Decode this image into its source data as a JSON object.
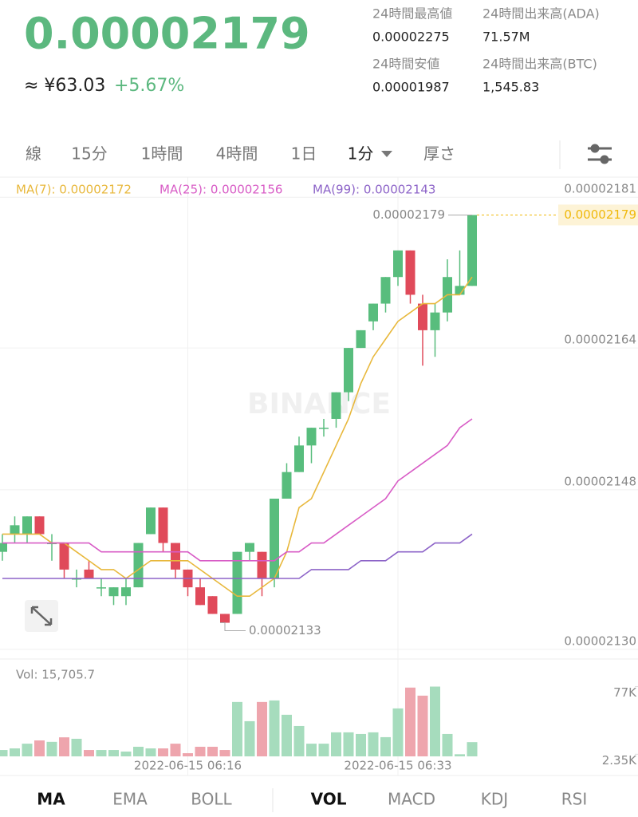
{
  "header": {
    "price": "0.00002179",
    "fiat": "≈ ¥63.03",
    "change": "+5.67%",
    "stats": [
      {
        "label": "24時間最高値",
        "value": "0.00002275"
      },
      {
        "label": "24時間出来高(ADA)",
        "value": "71.57M"
      },
      {
        "label": "24時間安値",
        "value": "0.00001987"
      },
      {
        "label": "24時間出来高(BTC)",
        "value": "1,545.83"
      }
    ]
  },
  "tabs": [
    "線",
    "15分",
    "1時間",
    "4時間",
    "1日",
    "1分",
    "厚さ"
  ],
  "indicator_tabs": [
    "MA",
    "EMA",
    "BOLL",
    "VOL",
    "MACD",
    "KDJ",
    "RSI"
  ],
  "chart_data": {
    "type": "candlestick",
    "watermark": "BINANCE",
    "categories": [
      null,
      null,
      null,
      null,
      null,
      null,
      null,
      null,
      null,
      null,
      null,
      null,
      null,
      null,
      null,
      "2022-06-15 06:16",
      null,
      null,
      null,
      null,
      null,
      null,
      null,
      null,
      null,
      null,
      null,
      null,
      null,
      null,
      null,
      null,
      "2022-06-15 06:33",
      null,
      null,
      null,
      null,
      null,
      null
    ],
    "open": [
      2.141e-05,
      2.143e-05,
      2.143e-05,
      2.145e-05,
      2.142e-05,
      2.142e-05,
      2.138e-05,
      2.139e-05,
      2.137e-05,
      2.136e-05,
      2.136e-05,
      2.137e-05,
      2.143e-05,
      2.146e-05,
      2.142e-05,
      2.139e-05,
      2.137e-05,
      2.136e-05,
      2.134e-05,
      2.134e-05,
      2.141e-05,
      2.141e-05,
      2.138e-05,
      2.147e-05,
      2.15e-05,
      2.153e-05,
      2.155e-05,
      2.156e-05,
      2.159e-05,
      2.164e-05,
      2.167e-05,
      2.169e-05,
      2.172e-05,
      2.175e-05,
      2.169e-05,
      2.166e-05,
      2.168e-05,
      2.17e-05,
      2.171e-05
    ],
    "high": [
      2.143e-05,
      2.145e-05,
      2.145e-05,
      2.145e-05,
      2.143e-05,
      2.142e-05,
      2.139e-05,
      2.14e-05,
      2.138e-05,
      2.137e-05,
      2.138e-05,
      2.142e-05,
      2.146e-05,
      2.146e-05,
      2.142e-05,
      2.139e-05,
      2.138e-05,
      2.136e-05,
      2.134e-05,
      2.141e-05,
      2.142e-05,
      2.141e-05,
      2.147e-05,
      2.151e-05,
      2.154e-05,
      2.155e-05,
      2.156e-05,
      2.159e-05,
      2.164e-05,
      2.166e-05,
      2.169e-05,
      2.172e-05,
      2.175e-05,
      2.175e-05,
      2.17e-05,
      2.169e-05,
      2.174e-05,
      2.175e-05,
      2.179e-05
    ],
    "low": [
      2.14e-05,
      2.142e-05,
      2.142e-05,
      2.143e-05,
      2.14e-05,
      2.138e-05,
      2.137e-05,
      2.138e-05,
      2.136e-05,
      2.135e-05,
      2.135e-05,
      2.137e-05,
      2.143e-05,
      2.141e-05,
      2.138e-05,
      2.136e-05,
      2.135e-05,
      2.134e-05,
      2.133e-05,
      2.134e-05,
      2.14e-05,
      2.136e-05,
      2.137e-05,
      2.147e-05,
      2.15e-05,
      2.151e-05,
      2.154e-05,
      2.155e-05,
      2.158e-05,
      2.164e-05,
      2.166e-05,
      2.168e-05,
      2.171e-05,
      2.169e-05,
      2.162e-05,
      2.163e-05,
      2.167e-05,
      2.17e-05,
      2.171e-05
    ],
    "close": [
      2.142e-05,
      2.144e-05,
      2.145e-05,
      2.143e-05,
      2.142e-05,
      2.139e-05,
      2.138e-05,
      2.138e-05,
      2.137e-05,
      2.137e-05,
      2.137e-05,
      2.142e-05,
      2.146e-05,
      2.142e-05,
      2.139e-05,
      2.137e-05,
      2.135e-05,
      2.134e-05,
      2.133e-05,
      2.141e-05,
      2.142e-05,
      2.138e-05,
      2.147e-05,
      2.15e-05,
      2.153e-05,
      2.155e-05,
      2.155e-05,
      2.159e-05,
      2.164e-05,
      2.166e-05,
      2.169e-05,
      2.172e-05,
      2.175e-05,
      2.17e-05,
      2.166e-05,
      2.168e-05,
      2.172e-05,
      2.171e-05,
      2.179e-05
    ],
    "up_color": "#58bd7d",
    "down_color": "#e04a5a",
    "series": [
      {
        "name": "MA(7): 0.00002172",
        "color": "#e8b83c",
        "values": [
          2.143e-05,
          2.143e-05,
          2.143e-05,
          2.143e-05,
          2.142e-05,
          2.142e-05,
          2.141e-05,
          2.14e-05,
          2.139e-05,
          2.139e-05,
          2.138e-05,
          2.139e-05,
          2.14e-05,
          2.14e-05,
          2.14e-05,
          2.14e-05,
          2.139e-05,
          2.138e-05,
          2.137e-05,
          2.136e-05,
          2.136e-05,
          2.137e-05,
          2.138e-05,
          2.141e-05,
          2.146e-05,
          2.147e-05,
          2.15e-05,
          2.153e-05,
          2.156e-05,
          2.16e-05,
          2.163e-05,
          2.165e-05,
          2.167e-05,
          2.168e-05,
          2.169e-05,
          2.169e-05,
          2.17e-05,
          2.17e-05,
          2.172e-05
        ]
      },
      {
        "name": "MA(25): 0.00002156",
        "color": "#d85cc6",
        "values": [
          2.142e-05,
          2.142e-05,
          2.142e-05,
          2.142e-05,
          2.142e-05,
          2.142e-05,
          2.142e-05,
          2.142e-05,
          2.141e-05,
          2.141e-05,
          2.141e-05,
          2.141e-05,
          2.141e-05,
          2.141e-05,
          2.141e-05,
          2.141e-05,
          2.14e-05,
          2.14e-05,
          2.14e-05,
          2.14e-05,
          2.14e-05,
          2.14e-05,
          2.14e-05,
          2.141e-05,
          2.141e-05,
          2.142e-05,
          2.142e-05,
          2.143e-05,
          2.144e-05,
          2.145e-05,
          2.146e-05,
          2.147e-05,
          2.149e-05,
          2.15e-05,
          2.151e-05,
          2.152e-05,
          2.153e-05,
          2.155e-05,
          2.156e-05
        ]
      },
      {
        "name": "MA(99): 0.00002143",
        "color": "#8d64c8",
        "values": [
          2.138e-05,
          2.138e-05,
          2.138e-05,
          2.138e-05,
          2.138e-05,
          2.138e-05,
          2.138e-05,
          2.138e-05,
          2.138e-05,
          2.138e-05,
          2.138e-05,
          2.138e-05,
          2.138e-05,
          2.138e-05,
          2.138e-05,
          2.138e-05,
          2.138e-05,
          2.138e-05,
          2.138e-05,
          2.138e-05,
          2.138e-05,
          2.138e-05,
          2.138e-05,
          2.138e-05,
          2.138e-05,
          2.139e-05,
          2.139e-05,
          2.139e-05,
          2.139e-05,
          2.14e-05,
          2.14e-05,
          2.14e-05,
          2.141e-05,
          2.141e-05,
          2.141e-05,
          2.142e-05,
          2.142e-05,
          2.142e-05,
          2.143e-05
        ]
      }
    ],
    "ylim": [
      2.129e-05,
      2.183e-05
    ],
    "yticks": [
      2.181e-05,
      2.164e-05,
      2.148e-05,
      {
        "value": 2.13e-05,
        "label": "0.00002130"
      }
    ],
    "grid": true,
    "high_marker": 2.179e-05,
    "low_marker": 2.133e-05,
    "last_price": 2.179e-05,
    "volume": {
      "label": "Vol: 15,705.7",
      "up_color": "#a6dcbd",
      "down_color": "#eea5ad",
      "values": [
        7000,
        8800,
        14000,
        17600,
        16000,
        21000,
        19400,
        7000,
        7000,
        7000,
        5300,
        10600,
        8800,
        8800,
        14000,
        3500,
        10600,
        10600,
        7000,
        60000,
        38800,
        60000,
        61700,
        45900,
        33500,
        14000,
        14000,
        26500,
        26500,
        24700,
        26500,
        21200,
        52900,
        75900,
        67000,
        77000,
        24700,
        2350,
        15705.7
      ],
      "ylim": [
        0,
        81000
      ],
      "yticks": [
        {
          "value": 2350,
          "label": "2.35K"
        },
        {
          "value": 77000,
          "label": "77K"
        }
      ]
    }
  }
}
